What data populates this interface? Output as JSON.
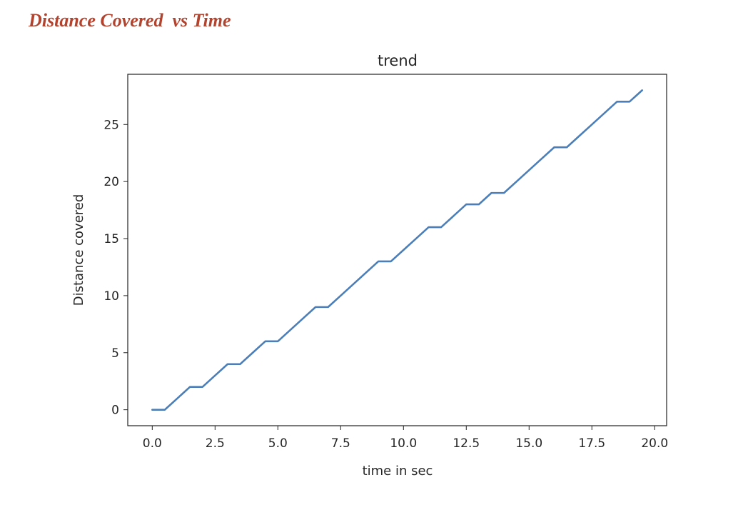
{
  "document": {
    "heading": "Distance Covered  vs Time"
  },
  "chart_data": {
    "type": "line",
    "title": "trend",
    "xlabel": "time in sec",
    "ylabel": "Distance covered",
    "xlim": [
      -0.975,
      20.475
    ],
    "ylim": [
      -1.4,
      29.4
    ],
    "xticks": [
      0,
      2.5,
      5,
      7.5,
      10,
      12.5,
      15,
      17.5,
      20
    ],
    "xtick_labels": [
      "0.0",
      "2.5",
      "5.0",
      "7.5",
      "10.0",
      "12.5",
      "15.0",
      "17.5",
      "20.0"
    ],
    "yticks": [
      0,
      5,
      10,
      15,
      20,
      25
    ],
    "ytick_labels": [
      "0",
      "5",
      "10",
      "15",
      "20",
      "25"
    ],
    "grid": false,
    "line_color": "#4c7fb8",
    "series": [
      {
        "x": [
          0,
          0.5,
          1,
          1.5,
          2,
          2.5,
          3,
          3.5,
          4,
          4.5,
          5,
          5.5,
          6,
          6.5,
          7,
          7.5,
          8,
          8.5,
          9,
          9.5,
          10,
          10.5,
          11,
          11.5,
          12,
          12.5,
          13,
          13.5,
          14,
          14.5,
          15,
          15.5,
          16,
          16.5,
          17,
          17.5,
          18,
          18.5,
          19,
          19.5
        ],
        "values": [
          0,
          0,
          1,
          2,
          2,
          3,
          4,
          4,
          5,
          6,
          6,
          7,
          8,
          9,
          9,
          10,
          11,
          12,
          13,
          13,
          14,
          15,
          16,
          16,
          17,
          18,
          18,
          19,
          19,
          20,
          21,
          22,
          23,
          23,
          24,
          25,
          26,
          27,
          27,
          28
        ]
      }
    ]
  }
}
